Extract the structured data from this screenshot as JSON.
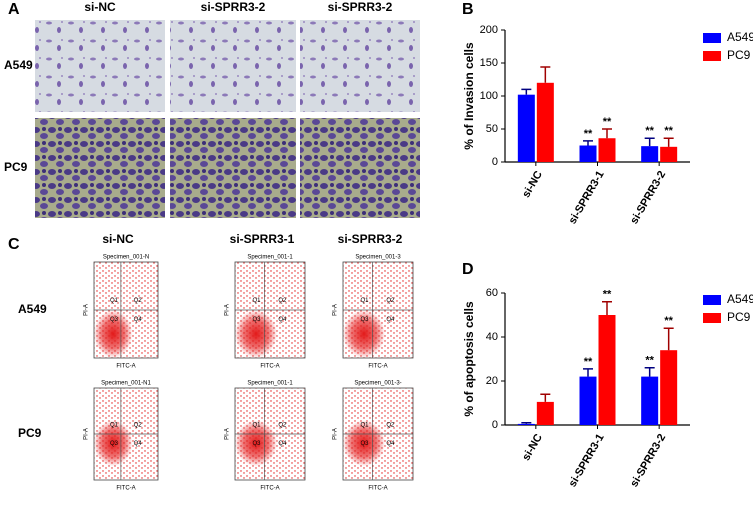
{
  "figure": {
    "panel_labels": [
      "A",
      "B",
      "C",
      "D"
    ],
    "panel_a": {
      "columns": [
        "si-NC",
        "si-SPRR3-2",
        "si-SPRR3-2"
      ],
      "rows": [
        "A549",
        "PC9"
      ]
    },
    "panel_c": {
      "columns": [
        "si-NC",
        "si-SPRR3-1",
        "si-SPRR3-2"
      ],
      "rows": [
        "A549",
        "PC9"
      ],
      "plot_titles": [
        [
          "Specimen_001-N",
          "Specimen_001-1",
          "Specimen_001-3"
        ],
        [
          "Specimen_001-N1",
          "Specimen_001-1",
          "Specimen_001-3-"
        ]
      ],
      "quadrants": [
        "Q1",
        "Q2",
        "Q3",
        "Q4"
      ],
      "x_label": "FITC-A",
      "y_label": "PI-A"
    }
  },
  "chart_data": [
    {
      "type": "bar",
      "y_label": "% of Invasion cells",
      "categories": [
        "si-NC",
        "si-SPRR3-1",
        "si-SPRR3-2"
      ],
      "series": [
        {
          "name": "A549",
          "color": "#0000ff",
          "values": [
            102,
            25,
            24
          ],
          "errors": [
            8,
            7,
            12
          ],
          "significance": [
            null,
            "**",
            "**"
          ]
        },
        {
          "name": "PC9",
          "color": "#ff0000",
          "values": [
            120,
            36,
            23
          ],
          "errors": [
            24,
            14,
            13
          ],
          "significance": [
            null,
            "**",
            "**"
          ]
        }
      ],
      "ylim": [
        0,
        200
      ],
      "yticks": [
        0,
        50,
        100,
        150,
        200
      ],
      "legend": "right"
    },
    {
      "type": "bar",
      "y_label": "% of apoptosis cells",
      "categories": [
        "si-NC",
        "si-SPRR3-1",
        "si-SPRR3-2"
      ],
      "series": [
        {
          "name": "A549",
          "color": "#0000ff",
          "values": [
            0.5,
            22,
            22
          ],
          "errors": [
            0.5,
            3.5,
            4
          ],
          "significance": [
            null,
            "**",
            "**"
          ]
        },
        {
          "name": "PC9",
          "color": "#ff0000",
          "values": [
            10.5,
            50,
            34
          ],
          "errors": [
            3.5,
            6,
            10
          ],
          "significance": [
            null,
            "**",
            "**"
          ]
        }
      ],
      "ylim": [
        0,
        60
      ],
      "yticks": [
        0,
        20,
        40,
        60
      ],
      "legend": "right"
    }
  ]
}
